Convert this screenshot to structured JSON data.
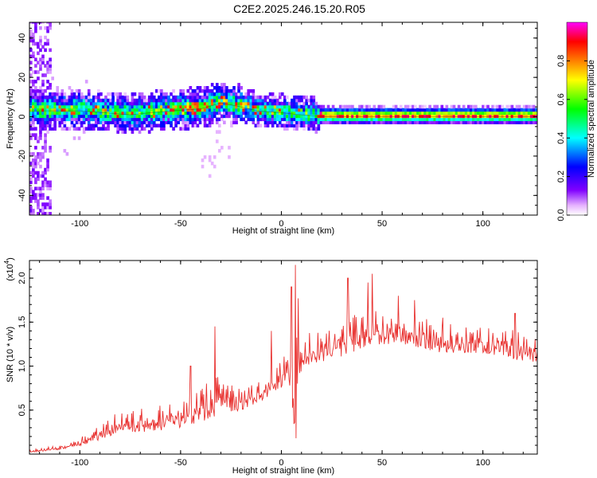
{
  "title": "C2E2.2025.246.15.20.R05",
  "chart_data": [
    {
      "type": "heatmap",
      "name": "spectrogram",
      "xlabel": "Height of straight line (km)",
      "ylabel": "Frequency (Hz)",
      "xlim": [
        -125,
        127
      ],
      "ylim": [
        -50,
        48
      ],
      "xticks": [
        -100,
        -50,
        0,
        50,
        100
      ],
      "yticks": [
        -40,
        -20,
        0,
        20,
        40
      ],
      "colorbar": {
        "label": "Normalized spectral amplitude",
        "range": [
          0,
          1
        ],
        "ticks": [
          "0.0",
          "0.2",
          "0.4",
          "0.6",
          "0.8"
        ],
        "tick_values": [
          0,
          0.2,
          0.4,
          0.6,
          0.8
        ],
        "stops": [
          "#ffffff",
          "#e6b3ff",
          "#8000ff",
          "#0000ff",
          "#00ffff",
          "#00ff00",
          "#ffff00",
          "#ff7f00",
          "#ff0000",
          "#ff00ff"
        ]
      },
      "ridge": {
        "description_points_km_hz": [
          [
            -125,
            3
          ],
          [
            -100,
            3
          ],
          [
            -75,
            1
          ],
          [
            -55,
            3
          ],
          [
            -40,
            4
          ],
          [
            -30,
            7
          ],
          [
            -20,
            5
          ],
          [
            -12,
            3
          ],
          [
            0,
            2
          ],
          [
            10,
            1
          ],
          [
            20,
            0
          ],
          [
            127,
            0
          ]
        ]
      }
    },
    {
      "type": "line",
      "name": "snr",
      "xlabel": "Height of straight line (km)",
      "ylabel": "SNR (10 * v/v)",
      "scale_label": "(x10",
      "scale_exp": "4",
      "scale_close": ")",
      "xlim": [
        -125,
        127
      ],
      "ylim": [
        0,
        2.2
      ],
      "xticks": [
        -100,
        -50,
        0,
        50,
        100
      ],
      "yticks": [
        "0.5",
        "1.0",
        "1.5",
        "2.0"
      ],
      "ytick_values": [
        0.5,
        1.0,
        1.5,
        2.0
      ],
      "color": "#e8312f",
      "envelope_points_km": [
        [
          -125,
          0.02,
          0.05
        ],
        [
          -110,
          0.05,
          0.1
        ],
        [
          -95,
          0.12,
          0.28
        ],
        [
          -80,
          0.25,
          0.5
        ],
        [
          -65,
          0.25,
          0.55
        ],
        [
          -50,
          0.3,
          0.6
        ],
        [
          -40,
          0.35,
          0.75
        ],
        [
          -30,
          0.45,
          0.95
        ],
        [
          -20,
          0.5,
          0.75
        ],
        [
          -10,
          0.6,
          0.85
        ],
        [
          0,
          0.75,
          1.05
        ],
        [
          3,
          0.9,
          1.3
        ],
        [
          7,
          0.2,
          2.15
        ],
        [
          10,
          1.0,
          1.35
        ],
        [
          20,
          1.05,
          1.45
        ],
        [
          30,
          1.1,
          1.55
        ],
        [
          40,
          1.2,
          1.65
        ],
        [
          50,
          1.25,
          1.65
        ],
        [
          60,
          1.25,
          1.6
        ],
        [
          70,
          1.2,
          1.55
        ],
        [
          80,
          1.15,
          1.5
        ],
        [
          90,
          1.15,
          1.45
        ],
        [
          100,
          1.15,
          1.45
        ],
        [
          110,
          1.1,
          1.45
        ],
        [
          120,
          1.05,
          1.4
        ],
        [
          127,
          1.05,
          1.3
        ]
      ],
      "peaks_km": [
        [
          -45,
          1.0
        ],
        [
          -33,
          1.45
        ],
        [
          -5,
          1.4
        ],
        [
          5,
          1.9
        ],
        [
          7,
          2.15
        ],
        [
          33,
          2.0
        ],
        [
          43,
          1.95
        ],
        [
          45,
          2.05
        ],
        [
          58,
          1.8
        ],
        [
          66,
          1.75
        ],
        [
          80,
          1.55
        ],
        [
          116,
          1.6
        ]
      ]
    }
  ]
}
